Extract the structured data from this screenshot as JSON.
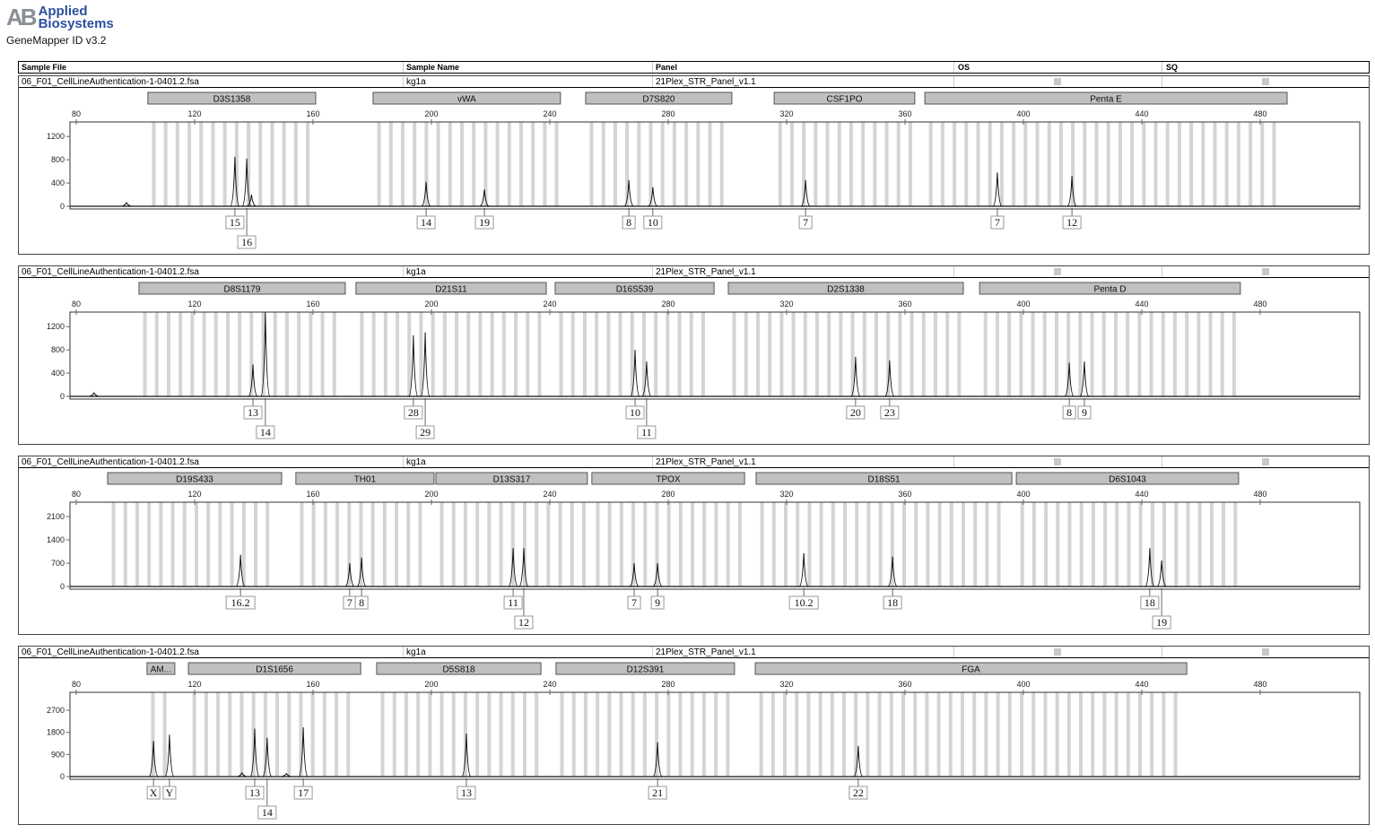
{
  "header": {
    "logo_text": [
      "Applied",
      "Biosystems"
    ],
    "logo_mark": "AB",
    "app_name": "GeneMapper ID v3.2"
  },
  "columns": {
    "sample_file": "Sample File",
    "sample_name": "Sample Name",
    "panel": "Panel",
    "os": "OS",
    "sq": "SQ"
  },
  "sample": {
    "file": "06_F01_CellLineAuthentication-1-0401.2.fsa",
    "name": "kg1a",
    "panel": "21Plex_STR_Panel_v1.1"
  },
  "chart_data": [
    {
      "type": "line",
      "xlim": [
        80,
        500
      ],
      "xticks": [
        80,
        120,
        160,
        200,
        240,
        280,
        320,
        360,
        400,
        440,
        480
      ],
      "yticks": [
        0,
        400,
        800,
        1200
      ],
      "ylim": [
        0,
        1450
      ],
      "markers": [
        {
          "name": "D3S1358",
          "range": [
            104.2,
            160.9
          ]
        },
        {
          "name": "vWA",
          "range": [
            180.3,
            243.6
          ]
        },
        {
          "name": "D7S820",
          "range": [
            252.1,
            301.5
          ]
        },
        {
          "name": "CSF1PO",
          "range": [
            315.8,
            363.3
          ]
        },
        {
          "name": "Penta E",
          "range": [
            366.7,
            489.1
          ]
        }
      ],
      "peaks": [
        {
          "size": 133.6,
          "height": 850,
          "allele": "15"
        },
        {
          "size": 137.6,
          "height": 820,
          "allele": "16",
          "row": 2
        },
        {
          "size": 139.2,
          "height": 200
        },
        {
          "size": 198.2,
          "height": 420,
          "allele": "14"
        },
        {
          "size": 217.9,
          "height": 290,
          "allele": "19"
        },
        {
          "size": 266.7,
          "height": 450,
          "allele": "8"
        },
        {
          "size": 274.8,
          "height": 330,
          "allele": "10"
        },
        {
          "size": 326.4,
          "height": 450,
          "allele": "7"
        },
        {
          "size": 391.2,
          "height": 580,
          "allele": "7"
        },
        {
          "size": 416.4,
          "height": 520,
          "allele": "12"
        },
        {
          "size": 97,
          "height": 60
        }
      ]
    },
    {
      "type": "line",
      "xlim": [
        80,
        500
      ],
      "xticks": [
        80,
        120,
        160,
        200,
        240,
        280,
        320,
        360,
        400,
        440,
        480
      ],
      "yticks": [
        0,
        400,
        800,
        1200
      ],
      "ylim": [
        0,
        1450
      ],
      "markers": [
        {
          "name": "D8S1179",
          "range": [
            101.2,
            170.9
          ]
        },
        {
          "name": "D21S11",
          "range": [
            174.5,
            238.8
          ]
        },
        {
          "name": "D16S539",
          "range": [
            241.8,
            295.5
          ]
        },
        {
          "name": "D2S1338",
          "range": [
            300.3,
            379.7
          ]
        },
        {
          "name": "Penta D",
          "range": [
            385.2,
            473.3
          ]
        }
      ],
      "peaks": [
        {
          "size": 139.7,
          "height": 550,
          "allele": "13"
        },
        {
          "size": 143.9,
          "height": 1450,
          "allele": "14",
          "row": 2
        },
        {
          "size": 193.9,
          "height": 1050,
          "allele": "28"
        },
        {
          "size": 197.9,
          "height": 1100,
          "allele": "29",
          "row": 2
        },
        {
          "size": 268.8,
          "height": 800,
          "allele": "10"
        },
        {
          "size": 272.7,
          "height": 600,
          "allele": "11",
          "row": 2
        },
        {
          "size": 343.3,
          "height": 680,
          "allele": "20"
        },
        {
          "size": 354.8,
          "height": 620,
          "allele": "23"
        },
        {
          "size": 415.5,
          "height": 580,
          "allele": "8"
        },
        {
          "size": 420.6,
          "height": 600,
          "allele": "9"
        },
        {
          "size": 86,
          "height": 60
        }
      ]
    },
    {
      "type": "line",
      "xlim": [
        80,
        500
      ],
      "xticks": [
        80,
        120,
        160,
        200,
        240,
        280,
        320,
        360,
        400,
        440,
        480
      ],
      "yticks": [
        0,
        700,
        1400,
        2100
      ],
      "ylim": [
        0,
        2530
      ],
      "markers": [
        {
          "name": "D19S433",
          "range": [
            90.6,
            149.4
          ]
        },
        {
          "name": "TH01",
          "range": [
            154.2,
            200.9
          ]
        },
        {
          "name": "D13S317",
          "range": [
            201.5,
            252.7
          ]
        },
        {
          "name": "TPOX",
          "range": [
            254.2,
            305.8
          ]
        },
        {
          "name": "D18S51",
          "range": [
            309.7,
            396.1
          ]
        },
        {
          "name": "D6S1043",
          "range": [
            397.6,
            472.7
          ]
        }
      ],
      "peaks": [
        {
          "size": 135.5,
          "height": 950,
          "allele": "16.2"
        },
        {
          "size": 172.4,
          "height": 700,
          "allele": "7"
        },
        {
          "size": 176.4,
          "height": 870,
          "allele": "8"
        },
        {
          "size": 227.6,
          "height": 1150,
          "allele": "11"
        },
        {
          "size": 231.2,
          "height": 1150,
          "allele": "12",
          "row": 2
        },
        {
          "size": 268.5,
          "height": 700,
          "allele": "7"
        },
        {
          "size": 276.4,
          "height": 700,
          "allele": "9"
        },
        {
          "size": 325.8,
          "height": 1000,
          "allele": "10.2"
        },
        {
          "size": 355.8,
          "height": 900,
          "allele": "18"
        },
        {
          "size": 442.7,
          "height": 1150,
          "allele": "18"
        },
        {
          "size": 446.7,
          "height": 780,
          "allele": "19",
          "row": 2
        }
      ]
    },
    {
      "type": "line",
      "xlim": [
        80,
        500
      ],
      "xticks": [
        80,
        120,
        160,
        200,
        240,
        280,
        320,
        360,
        400,
        440,
        480
      ],
      "yticks": [
        0,
        900,
        1800,
        2700
      ],
      "ylim": [
        0,
        3430
      ],
      "markers": [
        {
          "name": "AM...",
          "range": [
            103.9,
            113.3
          ]
        },
        {
          "name": "D1S1656",
          "range": [
            117.9,
            176.1
          ]
        },
        {
          "name": "D5S818",
          "range": [
            181.5,
            237
          ]
        },
        {
          "name": "D12S391",
          "range": [
            242.1,
            302.4
          ]
        },
        {
          "name": "FGA",
          "range": [
            309.4,
            455.2
          ]
        }
      ],
      "peaks": [
        {
          "size": 106.1,
          "height": 1450,
          "allele": "X"
        },
        {
          "size": 111.5,
          "height": 1700,
          "allele": "Y"
        },
        {
          "size": 140.3,
          "height": 1950,
          "allele": "13"
        },
        {
          "size": 144.5,
          "height": 1580,
          "allele": "14",
          "row": 2
        },
        {
          "size": 156.7,
          "height": 2000,
          "allele": "17"
        },
        {
          "size": 211.8,
          "height": 1750,
          "allele": "13"
        },
        {
          "size": 276.4,
          "height": 1400,
          "allele": "21"
        },
        {
          "size": 344.2,
          "height": 1250,
          "allele": "22"
        },
        {
          "size": 136,
          "height": 150
        },
        {
          "size": 151,
          "height": 120
        }
      ]
    }
  ],
  "colors": {
    "bin": "#d4d4d4",
    "marker": "#c0c0c0",
    "trace": "#111111",
    "brand": "#2c4fa0"
  }
}
